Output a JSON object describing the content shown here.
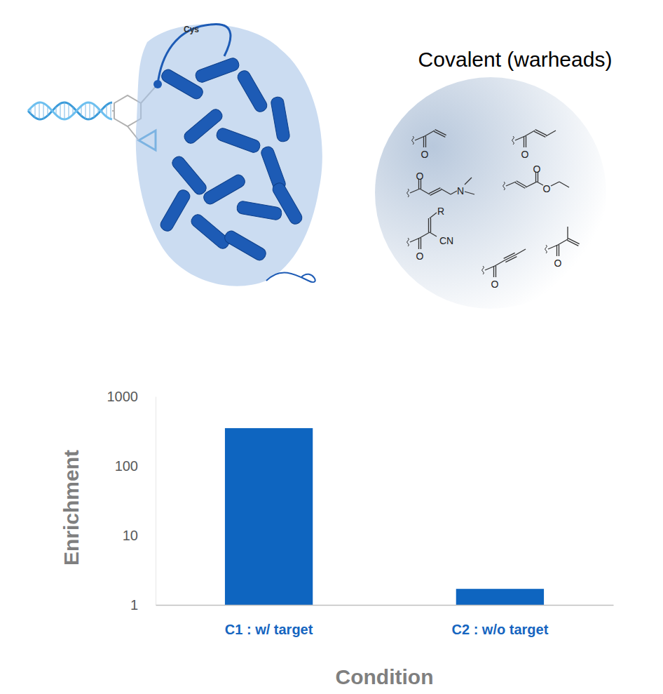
{
  "chart_data": {
    "type": "bar",
    "categories": [
      "C1 : w/ target",
      "C2 : w/o target"
    ],
    "values": [
      350,
      1.7
    ],
    "color": "#0e65c0",
    "ylim": [
      1,
      1000
    ],
    "yticks": [
      1,
      10,
      100,
      1000
    ],
    "log": "y",
    "grid": false,
    "x_label": "Condition",
    "y_label": "Enrichment"
  },
  "illustration": {
    "title": "Covalent (warheads)",
    "residue_label": "Cys",
    "warheads": [
      [
        "O"
      ],
      [
        "O"
      ],
      [
        "O",
        "N"
      ],
      [
        "O",
        "O"
      ],
      [
        "O",
        "R",
        "CN"
      ],
      [
        "O"
      ],
      [
        "O"
      ]
    ]
  }
}
